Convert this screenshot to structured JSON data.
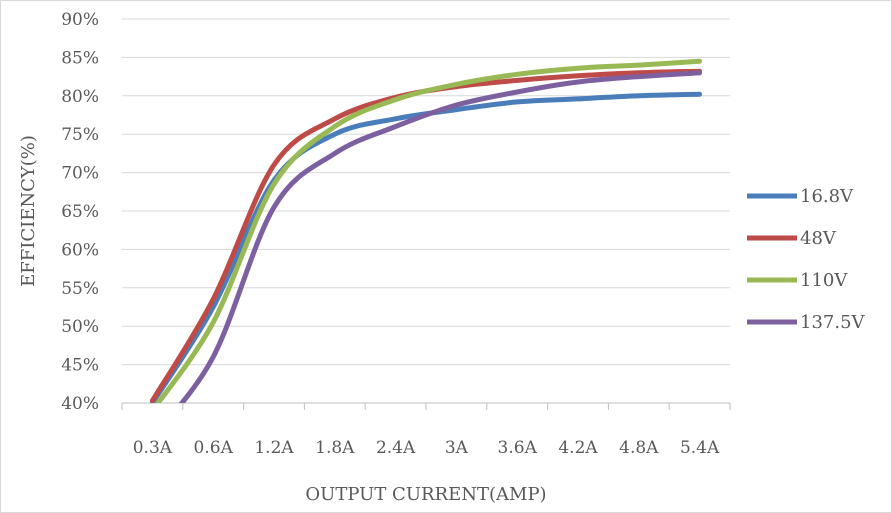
{
  "chart_data": {
    "type": "line",
    "title": "",
    "xlabel": "OUTPUT CURRENT(AMP)",
    "ylabel": "EFFICIENCY(%)",
    "categories": [
      "0.3A",
      "0.6A",
      "1.2A",
      "1.8A",
      "2.4A",
      "3A",
      "3.6A",
      "4.2A",
      "4.8A",
      "5.4A"
    ],
    "y_ticks": [
      "40%",
      "45%",
      "50%",
      "55%",
      "60%",
      "65%",
      "70%",
      "75%",
      "80%",
      "85%",
      "90%"
    ],
    "ylim": [
      40,
      90
    ],
    "grid": true,
    "legend_position": "right",
    "series": [
      {
        "name": "16.8V",
        "color": "#4a7ebb",
        "x": [
          0.3,
          0.6,
          1.2,
          1.8,
          2.4,
          3.0,
          3.6,
          4.2,
          4.8,
          5.4
        ],
        "values": [
          40.0,
          52.5,
          69.0,
          75.0,
          77.0,
          78.2,
          79.2,
          79.6,
          80.0,
          80.2
        ]
      },
      {
        "name": "48V",
        "color": "#be4b48",
        "x": [
          0.3,
          0.6,
          1.2,
          1.8,
          2.4,
          3.0,
          3.6,
          4.2,
          4.8,
          5.4
        ],
        "values": [
          40.3,
          53.5,
          71.0,
          77.0,
          79.8,
          81.2,
          82.0,
          82.6,
          83.0,
          83.2
        ]
      },
      {
        "name": "110V",
        "color": "#98b954",
        "x": [
          0.3,
          0.6,
          1.2,
          1.8,
          2.4,
          3.0,
          3.6,
          4.2,
          4.8,
          5.4
        ],
        "values": [
          39.0,
          50.5,
          68.5,
          76.0,
          79.5,
          81.5,
          82.8,
          83.6,
          84.0,
          84.5
        ]
      },
      {
        "name": "137.5V",
        "color": "#7d60a0",
        "x": [
          0.3,
          0.6,
          1.2,
          1.8,
          2.4,
          3.0,
          3.6,
          4.2,
          4.8,
          5.4
        ],
        "values": [
          35.5,
          46.0,
          65.5,
          72.5,
          76.0,
          78.8,
          80.5,
          81.8,
          82.5,
          83.0
        ]
      }
    ]
  }
}
